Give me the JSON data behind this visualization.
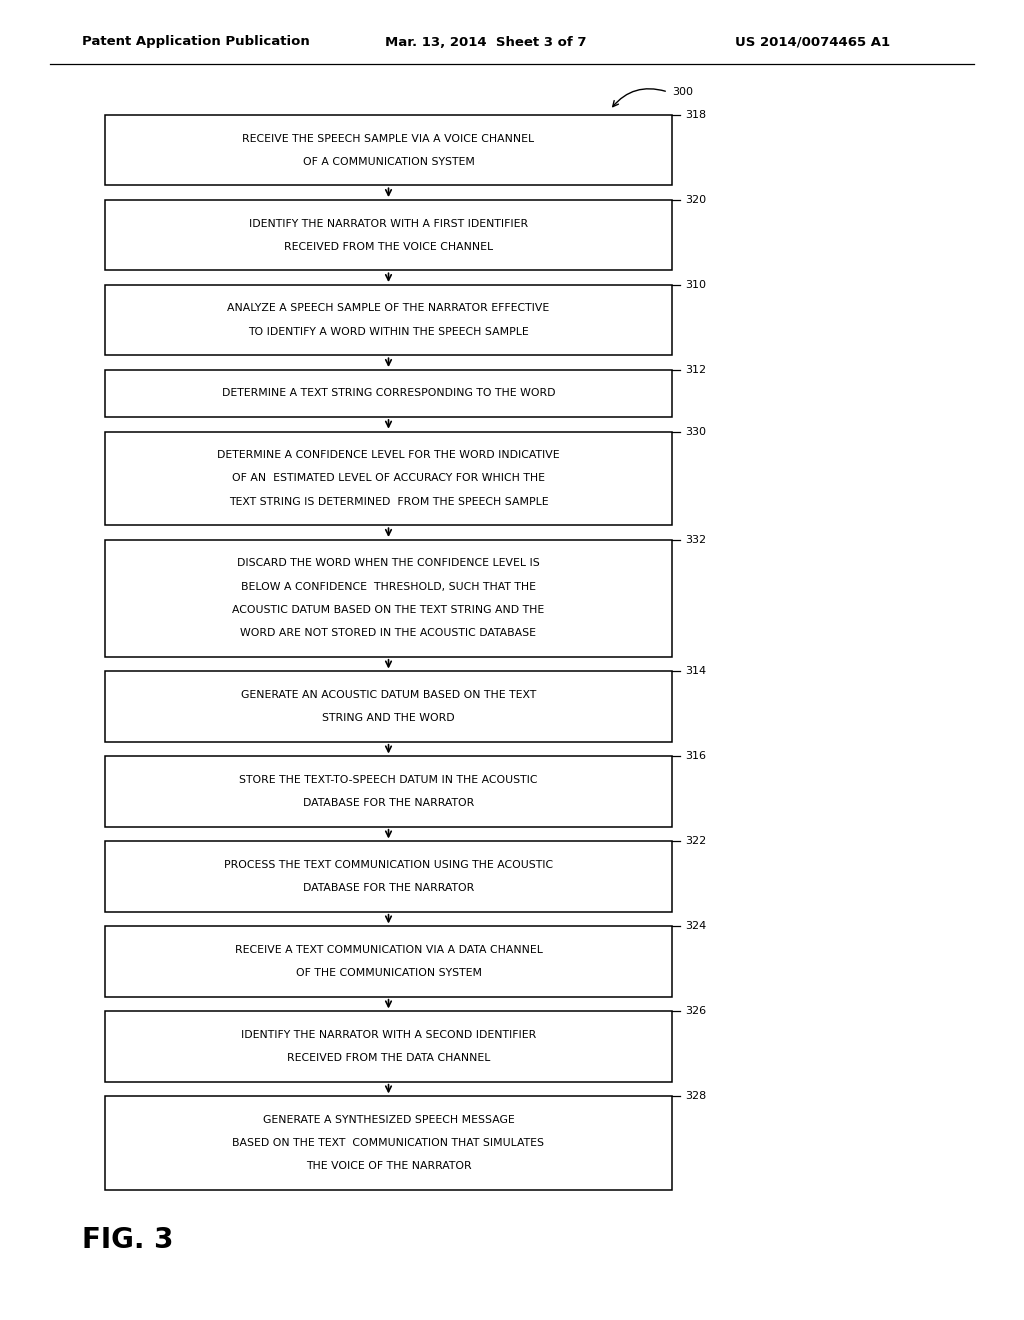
{
  "header_left": "Patent Application Publication",
  "header_middle": "Mar. 13, 2014  Sheet 3 of 7",
  "header_right": "US 2014/0074465 A1",
  "figure_label": "FIG. 3",
  "flow_label": "300",
  "boxes": [
    {
      "lines": [
        "RECEIVE THE SPEECH SAMPLE VIA A VOICE CHANNEL",
        "OF A COMMUNICATION SYSTEM"
      ],
      "label": "318"
    },
    {
      "lines": [
        "IDENTIFY THE NARRATOR WITH A FIRST IDENTIFIER",
        "RECEIVED FROM THE VOICE CHANNEL"
      ],
      "label": "320"
    },
    {
      "lines": [
        "ANALYZE A SPEECH SAMPLE OF THE NARRATOR EFFECTIVE",
        "TO IDENTIFY A WORD WITHIN THE SPEECH SAMPLE"
      ],
      "label": "310"
    },
    {
      "lines": [
        "DETERMINE A TEXT STRING CORRESPONDING TO THE WORD"
      ],
      "label": "312"
    },
    {
      "lines": [
        "DETERMINE A CONFIDENCE LEVEL FOR THE WORD INDICATIVE",
        "OF AN  ESTIMATED LEVEL OF ACCURACY FOR WHICH THE",
        "TEXT STRING IS DETERMINED  FROM THE SPEECH SAMPLE"
      ],
      "label": "330"
    },
    {
      "lines": [
        "DISCARD THE WORD WHEN THE CONFIDENCE LEVEL IS",
        "BELOW A CONFIDENCE  THRESHOLD, SUCH THAT THE",
        "ACOUSTIC DATUM BASED ON THE TEXT STRING AND THE",
        "WORD ARE NOT STORED IN THE ACOUSTIC DATABASE"
      ],
      "label": "332"
    },
    {
      "lines": [
        "GENERATE AN ACOUSTIC DATUM BASED ON THE TEXT",
        "STRING AND THE WORD"
      ],
      "label": "314"
    },
    {
      "lines": [
        "STORE THE TEXT-TO-SPEECH DATUM IN THE ACOUSTIC",
        "DATABASE FOR THE NARRATOR"
      ],
      "label": "316"
    },
    {
      "lines": [
        "PROCESS THE TEXT COMMUNICATION USING THE ACOUSTIC",
        "DATABASE FOR THE NARRATOR"
      ],
      "label": "322"
    },
    {
      "lines": [
        "RECEIVE A TEXT COMMUNICATION VIA A DATA CHANNEL",
        "OF THE COMMUNICATION SYSTEM"
      ],
      "label": "324"
    },
    {
      "lines": [
        "IDENTIFY THE NARRATOR WITH A SECOND IDENTIFIER",
        "RECEIVED FROM THE DATA CHANNEL"
      ],
      "label": "326"
    },
    {
      "lines": [
        "GENERATE A SYNTHESIZED SPEECH MESSAGE",
        "BASED ON THE TEXT  COMMUNICATION THAT SIMULATES",
        "THE VOICE OF THE NARRATOR"
      ],
      "label": "328"
    }
  ],
  "box_color": "#ffffff",
  "box_edgecolor": "#000000",
  "arrow_color": "#000000",
  "text_color": "#000000",
  "background_color": "#ffffff",
  "font_size": 7.8,
  "label_font_size": 8.0,
  "header_font_size": 9.5,
  "fig_label_font_size": 20
}
